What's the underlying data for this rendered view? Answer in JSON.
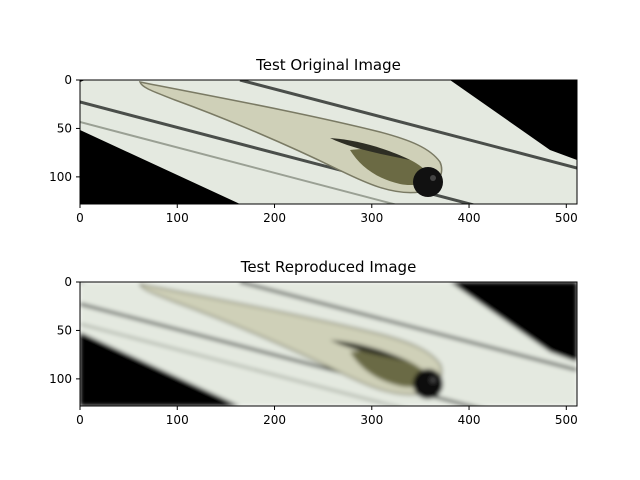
{
  "figure": {
    "background": "#ffffff",
    "panels": [
      {
        "title": "Test Original Image",
        "x_ticks": [
          "0",
          "100",
          "200",
          "300",
          "400",
          "500"
        ],
        "y_ticks": [
          "0",
          "50",
          "100"
        ],
        "x_tick_values": [
          0,
          100,
          200,
          300,
          400,
          500
        ],
        "y_tick_values": [
          0,
          50,
          100
        ],
        "x_range": [
          0,
          511
        ],
        "y_range": [
          0,
          128
        ],
        "image_content": "zebrafish-larva-in-tube",
        "style": "sharp"
      },
      {
        "title": "Test Reproduced Image",
        "x_ticks": [
          "0",
          "100",
          "200",
          "300",
          "400",
          "500"
        ],
        "y_ticks": [
          "0",
          "50",
          "100"
        ],
        "x_tick_values": [
          0,
          100,
          200,
          300,
          400,
          500
        ],
        "y_tick_values": [
          0,
          50,
          100
        ],
        "x_range": [
          0,
          511
        ],
        "y_range": [
          0,
          128
        ],
        "image_content": "zebrafish-larva-in-tube",
        "style": "blurred"
      }
    ]
  }
}
